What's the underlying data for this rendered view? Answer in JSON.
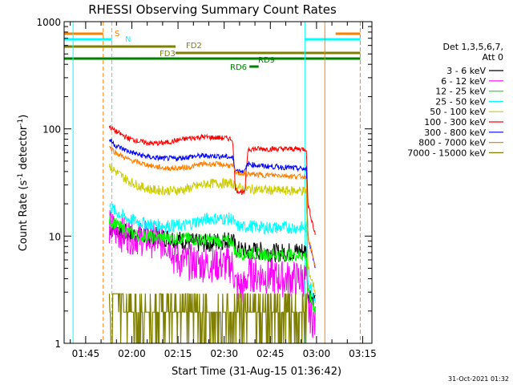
{
  "chart_data": {
    "type": "line",
    "title": "RHESSI Observing Summary Count Rates",
    "xlabel": "Start Time (31-Aug-15 01:36:42)",
    "ylabel_main": "Count Rate (s",
    "ylabel_sup1": "-1",
    "ylabel_mid": " detector",
    "ylabel_sup2": "-1",
    "ylabel_end": ")",
    "yscale": "log",
    "ylim": [
      1,
      1000
    ],
    "xlim_minutes": [
      1.3,
      101.3
    ],
    "x_ticks": [
      {
        "label": "01:45",
        "minutes": 8.3
      },
      {
        "label": "02:00",
        "minutes": 23.3
      },
      {
        "label": "02:15",
        "minutes": 38.3
      },
      {
        "label": "02:30",
        "minutes": 53.3
      },
      {
        "label": "02:45",
        "minutes": 68.3
      },
      {
        "label": "03:00",
        "minutes": 83.3
      },
      {
        "label": "03:15",
        "minutes": 98.3
      }
    ],
    "y_ticks": [
      {
        "label": "1",
        "value": 1
      },
      {
        "label": "10",
        "value": 10
      },
      {
        "label": "100",
        "value": 100
      },
      {
        "label": "1000",
        "value": 1000
      }
    ],
    "legend_title_1": "Det 1,3,5,6,7,",
    "legend_title_2": "Att 0",
    "series": [
      {
        "name": "3 - 6 keV",
        "color": "#000000",
        "x": [
          16,
          18,
          22,
          30,
          37,
          40,
          46,
          52,
          56,
          57,
          60,
          61,
          64,
          66,
          69,
          72,
          76,
          80,
          80.5,
          83
        ],
        "y": [
          12,
          11.5,
          10.5,
          10,
          9.5,
          9,
          8.5,
          9,
          9.5,
          7.5,
          7.2,
          7.2,
          7.3,
          7.2,
          7.0,
          7.0,
          7.2,
          7.3,
          3,
          2.5
        ]
      },
      {
        "name": "6 - 12 keV",
        "color": "#ff00ff",
        "x": [
          16,
          20,
          28,
          36,
          37,
          40,
          46,
          52,
          56,
          57,
          60,
          61,
          66,
          72,
          76,
          80,
          80.5,
          83
        ],
        "y": [
          12,
          10.5,
          9.5,
          8.5,
          6.2,
          5.8,
          5.5,
          5.5,
          5.3,
          3.5,
          3.3,
          4.5,
          4.3,
          4.0,
          4.0,
          4.0,
          2,
          1.5
        ]
      },
      {
        "name": "12 - 25 keV",
        "color": "#00ff00",
        "x": [
          16,
          18,
          22,
          26,
          30,
          36,
          40,
          46,
          52,
          56,
          57,
          60,
          61,
          66,
          72,
          76,
          80,
          80.5,
          83
        ],
        "y": [
          14,
          13,
          11,
          10,
          9.8,
          9.5,
          9.5,
          9.2,
          9.0,
          9.0,
          7.0,
          6.8,
          6.9,
          6.8,
          6.7,
          6.7,
          6.6,
          3,
          2
        ]
      },
      {
        "name": "25 - 50 keV",
        "color": "#00ffff",
        "x": [
          16,
          18,
          22,
          28,
          34,
          40,
          44,
          48,
          52,
          56,
          57,
          60,
          61,
          66,
          72,
          76,
          80,
          80.5,
          83
        ],
        "y": [
          19,
          17,
          14.5,
          13,
          12.5,
          12.5,
          13.5,
          14.5,
          14.5,
          14.5,
          12.5,
          12,
          12.5,
          12,
          12,
          12,
          12,
          4,
          2.5
        ]
      },
      {
        "name": "50 - 100 keV",
        "color": "#cccc00",
        "x": [
          16,
          18,
          22,
          26,
          30,
          36,
          40,
          44,
          48,
          52,
          56,
          57,
          60,
          61,
          66,
          72,
          76,
          80,
          80.5,
          83
        ],
        "y": [
          46,
          40,
          33,
          29,
          27,
          26.5,
          27,
          29,
          31,
          31,
          31,
          29,
          27.5,
          27.5,
          27,
          26.5,
          26.5,
          26.5,
          5,
          3
        ]
      },
      {
        "name": "100 - 300 keV",
        "color": "#ff0000",
        "x": [
          16,
          18,
          22,
          26,
          30,
          34,
          38,
          42,
          46,
          50,
          54,
          56,
          57,
          60,
          61,
          66,
          72,
          76,
          80,
          80.5,
          83
        ],
        "y": [
          105,
          95,
          82,
          76,
          73,
          74,
          78,
          82,
          84,
          83,
          82,
          80,
          27,
          25,
          65,
          65,
          65,
          65,
          65,
          20,
          10
        ]
      },
      {
        "name": "300 - 800 keV",
        "color": "#0000ff",
        "x": [
          16,
          18,
          22,
          26,
          30,
          34,
          38,
          42,
          46,
          50,
          54,
          56,
          57,
          60,
          61,
          66,
          72,
          76,
          80,
          80.5,
          83
        ],
        "y": [
          80,
          70,
          62,
          57,
          54,
          53,
          53,
          55,
          56,
          56,
          55,
          54,
          41,
          40,
          47,
          45,
          44,
          43,
          42,
          10,
          5
        ]
      },
      {
        "name": "800 - 7000 keV",
        "color": "#ff8000",
        "x": [
          16,
          18,
          22,
          26,
          30,
          34,
          38,
          42,
          46,
          50,
          54,
          56,
          57,
          60,
          61,
          66,
          72,
          76,
          80,
          80.5,
          83
        ],
        "y": [
          68,
          60,
          52,
          48,
          45,
          43,
          43,
          44,
          47,
          47,
          46,
          45,
          39,
          38,
          38,
          37,
          37,
          36,
          36,
          10,
          5
        ]
      },
      {
        "name": "7000 - 15000 keV",
        "color": "#808000",
        "x": [
          16,
          19,
          22,
          30,
          38,
          46,
          50,
          56,
          57,
          66,
          72,
          76,
          80,
          80.5
        ],
        "y": [
          2.8,
          2.2,
          1.6,
          1.6,
          1.7,
          1.8,
          1.8,
          1.9,
          1.5,
          1.6,
          1.7,
          1.6,
          1.7,
          1.0
        ]
      }
    ],
    "flag_bars": [
      {
        "label": "S",
        "color": "#ff8000",
        "segments": [
          [
            1.3,
            14.0
          ],
          [
            89.5,
            97.5
          ]
        ]
      },
      {
        "label": "N",
        "color": "#00ffff",
        "segments": [
          [
            1.3,
            16.8
          ],
          [
            79.5,
            97.5
          ]
        ]
      },
      {
        "label": "FD2",
        "color": "#808000",
        "segments": [
          [
            1.3,
            37.5
          ]
        ]
      },
      {
        "label": "FD3",
        "color": "#808000",
        "segments": [
          [
            37.5,
            97.5
          ]
        ]
      },
      {
        "label": "RD9",
        "color": "#008000",
        "segments": [
          [
            1.3,
            97.5
          ]
        ]
      },
      {
        "label": "RD6",
        "color": "#008000",
        "segments": [
          [
            61.5,
            64.5
          ]
        ]
      }
    ],
    "vertical_markers": [
      {
        "minutes": 4.2,
        "color": "#00ffff",
        "style": "solid"
      },
      {
        "minutes": 14.0,
        "color": "#ff8000",
        "style": "dashed"
      },
      {
        "minutes": 16.8,
        "color": "#00ffff",
        "style": "dashed"
      },
      {
        "minutes": 79.5,
        "color": "#00ffff",
        "style": "solid"
      },
      {
        "minutes": 86.0,
        "color": "#ff8000",
        "style": "solid"
      },
      {
        "minutes": 97.5,
        "color": "#ff8000",
        "style": "dashed"
      }
    ]
  },
  "footer": {
    "date_stamp": "31-Oct-2021 01:32"
  }
}
